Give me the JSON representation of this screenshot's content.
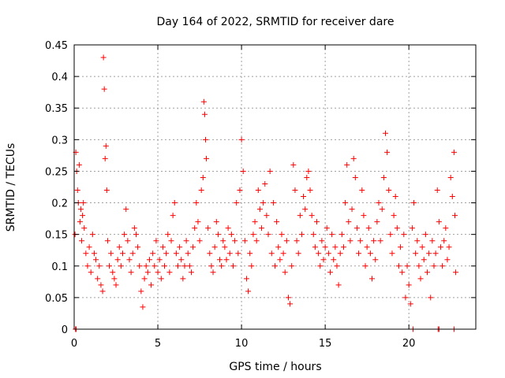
{
  "chart_data": {
    "type": "scatter",
    "title": "Day 164 of 2022, SRMTID for receiver dare",
    "xlabel": "GPS time / hours",
    "ylabel": "SRMTID / TECUs",
    "xlim": [
      0,
      24
    ],
    "ylim": [
      0,
      0.45
    ],
    "x_ticks": [
      0,
      5,
      10,
      15,
      20
    ],
    "y_ticks": [
      0,
      0.05,
      0.1,
      0.15,
      0.2,
      0.25,
      0.3,
      0.35,
      0.4,
      0.45
    ],
    "x_tick_labels": [
      "0",
      "5",
      "10",
      "15",
      "20"
    ],
    "y_tick_labels": [
      "0",
      "0.05",
      "0.1",
      "0.15",
      "0.2",
      "0.25",
      "0.3",
      "0.35",
      "0.4",
      "0.45"
    ],
    "grid": true,
    "marker": "+",
    "color": "#ff0000",
    "series": [
      {
        "name": "SRMTID",
        "points": [
          [
            0.05,
            0.15
          ],
          [
            0.1,
            0.28
          ],
          [
            0.15,
            0.25
          ],
          [
            0.2,
            0.22
          ],
          [
            0.25,
            0.2
          ],
          [
            0.3,
            0.26
          ],
          [
            0.35,
            0.17
          ],
          [
            0.4,
            0.19
          ],
          [
            0.45,
            0.14
          ],
          [
            0.5,
            0.18
          ],
          [
            0.55,
            0.2
          ],
          [
            0.6,
            0.16
          ],
          [
            0.7,
            0.12
          ],
          [
            0.8,
            0.1
          ],
          [
            0.9,
            0.13
          ],
          [
            1.0,
            0.09
          ],
          [
            1.1,
            0.15
          ],
          [
            1.2,
            0.12
          ],
          [
            1.3,
            0.11
          ],
          [
            1.4,
            0.08
          ],
          [
            1.5,
            0.1
          ],
          [
            1.6,
            0.07
          ],
          [
            1.7,
            0.06
          ],
          [
            1.75,
            0.43
          ],
          [
            1.8,
            0.38
          ],
          [
            1.85,
            0.27
          ],
          [
            1.9,
            0.29
          ],
          [
            1.95,
            0.22
          ],
          [
            2.0,
            0.14
          ],
          [
            2.1,
            0.1
          ],
          [
            2.2,
            0.12
          ],
          [
            2.3,
            0.09
          ],
          [
            2.4,
            0.08
          ],
          [
            2.5,
            0.07
          ],
          [
            2.6,
            0.11
          ],
          [
            2.7,
            0.13
          ],
          [
            2.8,
            0.1
          ],
          [
            2.9,
            0.12
          ],
          [
            3.0,
            0.15
          ],
          [
            3.1,
            0.19
          ],
          [
            3.2,
            0.14
          ],
          [
            3.3,
            0.11
          ],
          [
            3.4,
            0.09
          ],
          [
            3.5,
            0.12
          ],
          [
            3.6,
            0.16
          ],
          [
            3.7,
            0.15
          ],
          [
            3.8,
            0.13
          ],
          [
            3.9,
            0.1
          ],
          [
            4.0,
            0.06
          ],
          [
            4.1,
            0.035
          ],
          [
            4.2,
            0.08
          ],
          [
            4.3,
            0.1
          ],
          [
            4.4,
            0.09
          ],
          [
            4.5,
            0.11
          ],
          [
            4.6,
            0.07
          ],
          [
            4.7,
            0.12
          ],
          [
            4.8,
            0.1
          ],
          [
            4.9,
            0.14
          ],
          [
            5.0,
            0.09
          ],
          [
            5.1,
            0.11
          ],
          [
            5.2,
            0.08
          ],
          [
            5.3,
            0.13
          ],
          [
            5.4,
            0.1
          ],
          [
            5.5,
            0.12
          ],
          [
            5.6,
            0.15
          ],
          [
            5.7,
            0.09
          ],
          [
            5.8,
            0.14
          ],
          [
            5.9,
            0.18
          ],
          [
            6.0,
            0.2
          ],
          [
            6.1,
            0.12
          ],
          [
            6.2,
            0.1
          ],
          [
            6.3,
            0.13
          ],
          [
            6.4,
            0.11
          ],
          [
            6.5,
            0.08
          ],
          [
            6.6,
            0.1
          ],
          [
            6.7,
            0.14
          ],
          [
            6.8,
            0.12
          ],
          [
            6.9,
            0.1
          ],
          [
            7.0,
            0.09
          ],
          [
            7.1,
            0.13
          ],
          [
            7.2,
            0.16
          ],
          [
            7.3,
            0.2
          ],
          [
            7.4,
            0.17
          ],
          [
            7.5,
            0.14
          ],
          [
            7.6,
            0.22
          ],
          [
            7.7,
            0.24
          ],
          [
            7.75,
            0.36
          ],
          [
            7.8,
            0.34
          ],
          [
            7.85,
            0.3
          ],
          [
            7.9,
            0.27
          ],
          [
            8.0,
            0.16
          ],
          [
            8.1,
            0.12
          ],
          [
            8.2,
            0.1
          ],
          [
            8.3,
            0.09
          ],
          [
            8.4,
            0.13
          ],
          [
            8.5,
            0.17
          ],
          [
            8.6,
            0.15
          ],
          [
            8.7,
            0.11
          ],
          [
            8.8,
            0.1
          ],
          [
            8.9,
            0.14
          ],
          [
            9.0,
            0.13
          ],
          [
            9.1,
            0.11
          ],
          [
            9.2,
            0.16
          ],
          [
            9.3,
            0.12
          ],
          [
            9.4,
            0.15
          ],
          [
            9.5,
            0.1
          ],
          [
            9.6,
            0.14
          ],
          [
            9.7,
            0.2
          ],
          [
            9.8,
            0.12
          ],
          [
            9.9,
            0.22
          ],
          [
            10.0,
            0.3
          ],
          [
            10.1,
            0.25
          ],
          [
            10.2,
            0.14
          ],
          [
            10.3,
            0.08
          ],
          [
            10.4,
            0.06
          ],
          [
            10.5,
            0.12
          ],
          [
            10.6,
            0.1
          ],
          [
            10.7,
            0.15
          ],
          [
            10.8,
            0.17
          ],
          [
            10.9,
            0.14
          ],
          [
            11.0,
            0.22
          ],
          [
            11.1,
            0.19
          ],
          [
            11.2,
            0.16
          ],
          [
            11.3,
            0.2
          ],
          [
            11.4,
            0.23
          ],
          [
            11.5,
            0.18
          ],
          [
            11.6,
            0.15
          ],
          [
            11.7,
            0.25
          ],
          [
            11.8,
            0.12
          ],
          [
            11.9,
            0.2
          ],
          [
            12.0,
            0.1
          ],
          [
            12.1,
            0.17
          ],
          [
            12.2,
            0.13
          ],
          [
            12.3,
            0.11
          ],
          [
            12.4,
            0.15
          ],
          [
            12.5,
            0.12
          ],
          [
            12.6,
            0.09
          ],
          [
            12.7,
            0.14
          ],
          [
            12.8,
            0.05
          ],
          [
            12.9,
            0.04
          ],
          [
            13.0,
            0.1
          ],
          [
            13.1,
            0.26
          ],
          [
            13.2,
            0.22
          ],
          [
            13.3,
            0.14
          ],
          [
            13.4,
            0.12
          ],
          [
            13.5,
            0.18
          ],
          [
            13.6,
            0.15
          ],
          [
            13.7,
            0.21
          ],
          [
            13.8,
            0.19
          ],
          [
            13.9,
            0.24
          ],
          [
            14.0,
            0.25
          ],
          [
            14.1,
            0.22
          ],
          [
            14.2,
            0.18
          ],
          [
            14.3,
            0.15
          ],
          [
            14.4,
            0.13
          ],
          [
            14.5,
            0.17
          ],
          [
            14.6,
            0.12
          ],
          [
            14.7,
            0.1
          ],
          [
            14.8,
            0.14
          ],
          [
            14.9,
            0.11
          ],
          [
            15.0,
            0.13
          ],
          [
            15.1,
            0.16
          ],
          [
            15.2,
            0.12
          ],
          [
            15.3,
            0.09
          ],
          [
            15.4,
            0.15
          ],
          [
            15.5,
            0.11
          ],
          [
            15.6,
            0.13
          ],
          [
            15.7,
            0.1
          ],
          [
            15.8,
            0.07
          ],
          [
            15.9,
            0.12
          ],
          [
            16.0,
            0.15
          ],
          [
            16.1,
            0.13
          ],
          [
            16.2,
            0.2
          ],
          [
            16.3,
            0.26
          ],
          [
            16.4,
            0.17
          ],
          [
            16.5,
            0.14
          ],
          [
            16.6,
            0.19
          ],
          [
            16.7,
            0.27
          ],
          [
            16.8,
            0.24
          ],
          [
            16.9,
            0.16
          ],
          [
            17.0,
            0.12
          ],
          [
            17.1,
            0.14
          ],
          [
            17.2,
            0.22
          ],
          [
            17.3,
            0.18
          ],
          [
            17.4,
            0.1
          ],
          [
            17.5,
            0.13
          ],
          [
            17.6,
            0.16
          ],
          [
            17.7,
            0.12
          ],
          [
            17.8,
            0.08
          ],
          [
            17.9,
            0.14
          ],
          [
            18.0,
            0.11
          ],
          [
            18.1,
            0.17
          ],
          [
            18.2,
            0.2
          ],
          [
            18.3,
            0.14
          ],
          [
            18.4,
            0.19
          ],
          [
            18.5,
            0.24
          ],
          [
            18.6,
            0.31
          ],
          [
            18.7,
            0.28
          ],
          [
            18.8,
            0.22
          ],
          [
            18.9,
            0.15
          ],
          [
            19.0,
            0.12
          ],
          [
            19.1,
            0.18
          ],
          [
            19.2,
            0.21
          ],
          [
            19.3,
            0.16
          ],
          [
            19.4,
            0.1
          ],
          [
            19.5,
            0.13
          ],
          [
            19.6,
            0.09
          ],
          [
            19.7,
            0.15
          ],
          [
            19.8,
            0.05
          ],
          [
            19.9,
            0.1
          ],
          [
            20.0,
            0.07
          ],
          [
            20.1,
            0.04
          ],
          [
            20.2,
            0.16
          ],
          [
            20.3,
            0.2
          ],
          [
            20.4,
            0.12
          ],
          [
            20.5,
            0.14
          ],
          [
            20.6,
            0.1
          ],
          [
            20.7,
            0.08
          ],
          [
            20.8,
            0.13
          ],
          [
            20.9,
            0.11
          ],
          [
            21.0,
            0.15
          ],
          [
            21.1,
            0.09
          ],
          [
            21.2,
            0.12
          ],
          [
            21.3,
            0.05
          ],
          [
            21.4,
            0.14
          ],
          [
            21.5,
            0.1
          ],
          [
            21.6,
            0.12
          ],
          [
            21.7,
            0.22
          ],
          [
            21.8,
            0.17
          ],
          [
            21.9,
            0.13
          ],
          [
            22.0,
            0.1
          ],
          [
            22.1,
            0.14
          ],
          [
            22.2,
            0.16
          ],
          [
            22.3,
            0.11
          ],
          [
            22.4,
            0.13
          ],
          [
            22.5,
            0.24
          ],
          [
            22.6,
            0.21
          ],
          [
            22.7,
            0.28
          ],
          [
            22.75,
            0.18
          ],
          [
            22.8,
            0.09
          ],
          [
            0.08,
            0.0
          ],
          [
            0.12,
            0.0
          ],
          [
            20.25,
            0.0
          ],
          [
            21.75,
            0.0
          ],
          [
            21.8,
            0.0
          ],
          [
            22.7,
            0.0
          ]
        ]
      }
    ]
  }
}
